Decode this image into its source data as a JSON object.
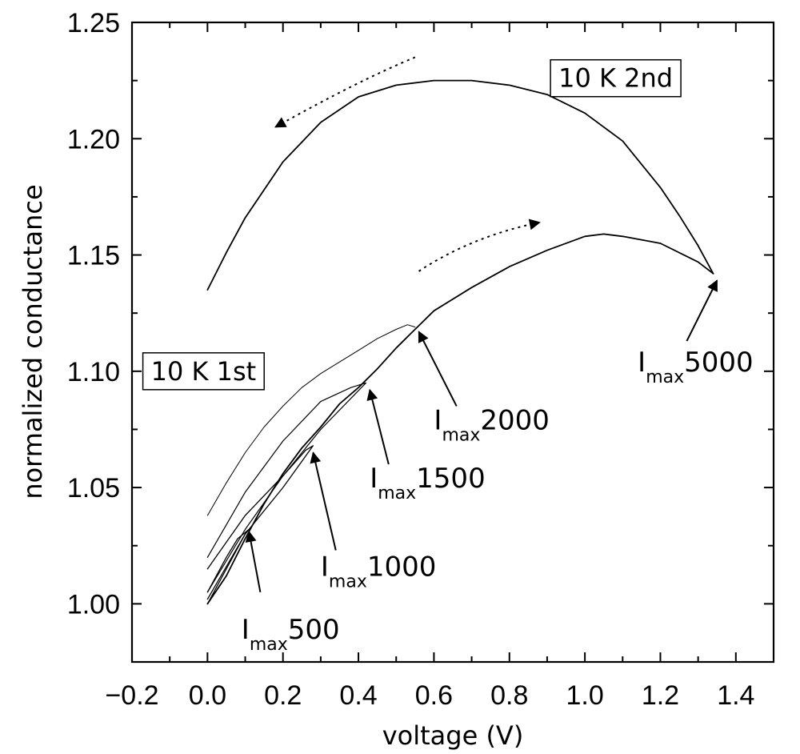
{
  "chart_data": {
    "type": "line",
    "title": "",
    "xlabel": "voltage (V)",
    "ylabel": "normalized conductance",
    "xlim": [
      -0.2,
      1.5
    ],
    "ylim": [
      0.975,
      1.25
    ],
    "xticks": [
      -0.2,
      0.0,
      0.2,
      0.4,
      0.6,
      0.8,
      1.0,
      1.2,
      1.4
    ],
    "xtick_labels": [
      "−0.2",
      "0.0",
      "0.2",
      "0.4",
      "0.6",
      "0.8",
      "1.0",
      "1.2",
      "1.4"
    ],
    "yticks": [
      1.0,
      1.05,
      1.1,
      1.15,
      1.2,
      1.25
    ],
    "ytick_labels": [
      "1.00",
      "1.05",
      "1.10",
      "1.15",
      "1.20",
      "1.25"
    ],
    "grid": false,
    "series": [
      {
        "width": 1.8,
        "points": [
          [
            0.0,
            1.0
          ],
          [
            0.05,
            1.012
          ],
          [
            0.1,
            1.028
          ],
          [
            0.15,
            1.043
          ],
          [
            0.2,
            1.056
          ],
          [
            0.25,
            1.067
          ],
          [
            0.3,
            1.076
          ],
          [
            0.35,
            1.086
          ],
          [
            0.4,
            1.093
          ],
          [
            0.45,
            1.101
          ],
          [
            0.5,
            1.11
          ],
          [
            0.55,
            1.118
          ],
          [
            0.6,
            1.126
          ],
          [
            0.7,
            1.136
          ],
          [
            0.8,
            1.145
          ],
          [
            0.9,
            1.152
          ],
          [
            1.0,
            1.158
          ],
          [
            1.05,
            1.159
          ],
          [
            1.1,
            1.158
          ],
          [
            1.2,
            1.155
          ],
          [
            1.3,
            1.147
          ],
          [
            1.34,
            1.142
          ]
        ]
      },
      {
        "width": 1.8,
        "points": [
          [
            1.34,
            1.142
          ],
          [
            1.3,
            1.154
          ],
          [
            1.25,
            1.167
          ],
          [
            1.2,
            1.179
          ],
          [
            1.1,
            1.199
          ],
          [
            1.0,
            1.211
          ],
          [
            0.9,
            1.219
          ],
          [
            0.8,
            1.223
          ],
          [
            0.7,
            1.225
          ],
          [
            0.6,
            1.225
          ],
          [
            0.5,
            1.223
          ],
          [
            0.4,
            1.218
          ],
          [
            0.3,
            1.207
          ],
          [
            0.2,
            1.19
          ],
          [
            0.1,
            1.166
          ],
          [
            0.05,
            1.151
          ],
          [
            0.0,
            1.135
          ]
        ]
      },
      {
        "width": 1.3,
        "points": [
          [
            0.0,
            1.0
          ],
          [
            0.05,
            1.015
          ],
          [
            0.1,
            1.03
          ],
          [
            0.11,
            1.032
          ],
          [
            0.08,
            1.028
          ],
          [
            0.05,
            1.02
          ],
          [
            0.0,
            1.005
          ]
        ]
      },
      {
        "width": 1.3,
        "points": [
          [
            0.0,
            1.002
          ],
          [
            0.1,
            1.03
          ],
          [
            0.2,
            1.05
          ],
          [
            0.28,
            1.068
          ],
          [
            0.26,
            1.066
          ],
          [
            0.2,
            1.055
          ],
          [
            0.1,
            1.038
          ],
          [
            0.0,
            1.015
          ]
        ]
      },
      {
        "width": 1.2,
        "points": [
          [
            0.0,
            1.005
          ],
          [
            0.1,
            1.032
          ],
          [
            0.2,
            1.055
          ],
          [
            0.3,
            1.075
          ],
          [
            0.42,
            1.095
          ],
          [
            0.38,
            1.093
          ],
          [
            0.3,
            1.087
          ],
          [
            0.2,
            1.07
          ],
          [
            0.1,
            1.048
          ],
          [
            0.0,
            1.02
          ]
        ]
      },
      {
        "width": 1.0,
        "points": [
          [
            0.0,
            1.038
          ],
          [
            0.05,
            1.052
          ],
          [
            0.1,
            1.065
          ],
          [
            0.15,
            1.076
          ],
          [
            0.2,
            1.085
          ],
          [
            0.25,
            1.093
          ],
          [
            0.3,
            1.099
          ],
          [
            0.35,
            1.104
          ],
          [
            0.4,
            1.109
          ],
          [
            0.45,
            1.114
          ],
          [
            0.5,
            1.118
          ],
          [
            0.53,
            1.12
          ],
          [
            0.55,
            1.119
          ]
        ]
      }
    ],
    "dotted_arrows": [
      {
        "from": [
          0.55,
          1.235
        ],
        "via": [
          0.4,
          1.225
        ],
        "to": [
          0.18,
          1.205
        ]
      },
      {
        "from": [
          0.56,
          1.143
        ],
        "via": [
          0.7,
          1.158
        ],
        "to": [
          0.88,
          1.164
        ]
      }
    ],
    "annotations": [
      {
        "main": "I",
        "sub": "max",
        "num": "500",
        "text_at": [
          0.09,
          0.985
        ],
        "arrow_from": [
          0.14,
          1.005
        ],
        "arrow_to": [
          0.11,
          1.031
        ]
      },
      {
        "main": "I",
        "sub": "max",
        "num": "1000",
        "text_at": [
          0.3,
          1.012
        ],
        "arrow_from": [
          0.34,
          1.023
        ],
        "arrow_to": [
          0.28,
          1.065
        ]
      },
      {
        "main": "I",
        "sub": "max",
        "num": "1500",
        "text_at": [
          0.43,
          1.05
        ],
        "arrow_from": [
          0.48,
          1.06
        ],
        "arrow_to": [
          0.43,
          1.092
        ]
      },
      {
        "main": "I",
        "sub": "max",
        "num": "2000",
        "text_at": [
          0.6,
          1.075
        ],
        "arrow_from": [
          0.66,
          1.085
        ],
        "arrow_to": [
          0.56,
          1.117
        ]
      },
      {
        "main": "I",
        "sub": "max",
        "num": "5000",
        "text_at": [
          1.14,
          1.1
        ],
        "arrow_from": [
          1.27,
          1.113
        ],
        "arrow_to": [
          1.35,
          1.139
        ]
      }
    ],
    "boxes": [
      {
        "label": "10 K 2nd",
        "at": [
          0.93,
          1.226
        ]
      },
      {
        "label": "10 K 1st",
        "at": [
          -0.15,
          1.1
        ]
      }
    ]
  }
}
